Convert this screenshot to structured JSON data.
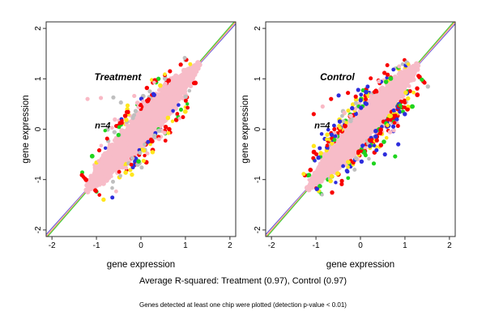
{
  "captions": {
    "r_squared": "Average R-squared: Treatment (0.97), Control (0.97)",
    "footnote": "Genes detected at least one chip were plotted (detection p-value < 0.01)"
  },
  "colors": {
    "box": "#2f2f2f",
    "tick_text": "#000000",
    "panel_title": "#8f8f8f",
    "annotation": "#000000",
    "cloud": "#f7bcc8",
    "point_palette": {
      "red": "#f80000",
      "blue": "#2d2ddc",
      "green": "#1fd41f",
      "yellow": "#ffe61c",
      "gray": "#bfbfbf",
      "pink": "#f9b9c5"
    }
  },
  "chart_data": [
    {
      "type": "scatter",
      "panel_label": "Treatment",
      "sample_size_label": "n=4",
      "n_chips": 4,
      "r_squared": 0.97,
      "xlabel": "gene expression",
      "ylabel": "gene expression",
      "xticks": [
        -2,
        -1,
        0,
        1,
        2
      ],
      "yticks": [
        -2,
        -1,
        0,
        1,
        2
      ],
      "xlim": [
        -2.13,
        2.13
      ],
      "ylim": [
        -2.13,
        2.13
      ],
      "panel_label_xy": [
        -0.52,
        0.97
      ],
      "sample_size_label_xy": [
        -0.86,
        0.02
      ],
      "chip_fit_lines": [
        {
          "color": "#4646dc",
          "slope": 0.982
        },
        {
          "color": "#ffb3c0",
          "slope": 0.993
        },
        {
          "color": "#eda75c",
          "slope": 1.006
        },
        {
          "color": "#3fcf3f",
          "slope": 1.017
        }
      ],
      "cloud": {
        "neg_extent": -1.22,
        "extent": 1.3,
        "half_width": 0.27,
        "n_points": 700,
        "seed": 101
      },
      "outliers": {
        "n_points": 190,
        "seed": 102,
        "weights": {
          "red": 0.3,
          "blue": 0.13,
          "green": 0.11,
          "yellow": 0.15,
          "gray": 0.15,
          "pink": 0.16
        }
      },
      "far_points": [
        {
          "color": "pink",
          "x": -1.2,
          "y": 0.6
        },
        {
          "color": "pink",
          "x": -0.9,
          "y": 0.62
        },
        {
          "color": "gray",
          "x": -0.62,
          "y": 0.63
        },
        {
          "color": "gray",
          "x": -0.45,
          "y": 0.53
        },
        {
          "color": "pink",
          "x": 0.05,
          "y": 0.55
        },
        {
          "color": "yellow",
          "x": -0.3,
          "y": 0.47
        },
        {
          "color": "pink",
          "x": -0.15,
          "y": 0.66
        },
        {
          "color": "gray",
          "x": 0.2,
          "y": 0.75
        },
        {
          "color": "pink",
          "x": 0.55,
          "y": 0.9
        }
      ]
    },
    {
      "type": "scatter",
      "panel_label": "Control",
      "sample_size_label": "n=4",
      "n_chips": 4,
      "r_squared": 0.97,
      "xlabel": "gene expression",
      "ylabel": "gene expression",
      "xticks": [
        -2,
        -1,
        0,
        1,
        2
      ],
      "yticks": [
        -2,
        -1,
        0,
        1,
        2
      ],
      "xlim": [
        -2.13,
        2.13
      ],
      "ylim": [
        -2.13,
        2.13
      ],
      "panel_label_xy": [
        -0.52,
        0.97
      ],
      "sample_size_label_xy": [
        -0.86,
        0.02
      ],
      "chip_fit_lines": [
        {
          "color": "#4646dc",
          "slope": 0.982
        },
        {
          "color": "#ffb3c0",
          "slope": 0.993
        },
        {
          "color": "#eda75c",
          "slope": 1.006
        },
        {
          "color": "#3fcf3f",
          "slope": 1.017
        }
      ],
      "cloud": {
        "neg_extent": -1.18,
        "extent": 1.28,
        "half_width": 0.26,
        "n_points": 700,
        "seed": 201
      },
      "outliers": {
        "n_points": 330,
        "seed": 202,
        "weights": {
          "red": 0.32,
          "blue": 0.18,
          "green": 0.16,
          "yellow": 0.14,
          "gray": 0.11,
          "pink": 0.09
        }
      },
      "far_points": [
        {
          "color": "blue",
          "x": -0.49,
          "y": 0.67
        },
        {
          "color": "red",
          "x": -0.66,
          "y": 0.6
        },
        {
          "color": "red",
          "x": -0.28,
          "y": 0.72
        },
        {
          "color": "blue",
          "x": -0.05,
          "y": 0.78
        },
        {
          "color": "pink",
          "x": -0.85,
          "y": 0.45
        },
        {
          "color": "red",
          "x": -1.05,
          "y": 0.3
        },
        {
          "color": "green",
          "x": 0.78,
          "y": -0.54
        },
        {
          "color": "blue",
          "x": 0.85,
          "y": -0.3
        },
        {
          "color": "green",
          "x": 0.3,
          "y": -0.68
        },
        {
          "color": "blue",
          "x": 0.55,
          "y": -0.5
        }
      ]
    }
  ]
}
